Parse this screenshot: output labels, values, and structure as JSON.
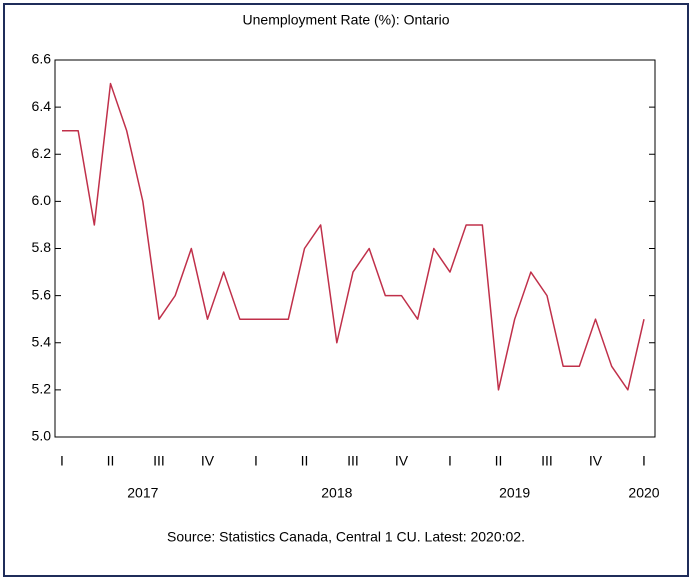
{
  "chart_data": {
    "type": "line",
    "title": "Unemployment Rate (%): Ontario",
    "source": "Source: Statistics Canada, Central 1 CU. Latest: 2020:02.",
    "categories": [
      "I",
      null,
      null,
      "II",
      null,
      null,
      "III",
      null,
      null,
      "IV",
      null,
      null,
      "I",
      null,
      null,
      "II",
      null,
      null,
      "III",
      null,
      null,
      "IV",
      null,
      null,
      "I",
      null,
      null,
      "II",
      null,
      null,
      "III",
      null,
      null,
      "IV",
      null,
      null,
      "I"
    ],
    "years": [
      null,
      null,
      null,
      null,
      null,
      "2017",
      null,
      null,
      null,
      null,
      null,
      null,
      null,
      null,
      null,
      null,
      null,
      "2018",
      null,
      null,
      null,
      null,
      null,
      null,
      null,
      null,
      null,
      null,
      "2019",
      null,
      null,
      null,
      null,
      null,
      null,
      null,
      "2020"
    ],
    "series": [
      {
        "name": "Ontario",
        "color": "#c0304a",
        "values": [
          6.3,
          6.3,
          5.9,
          6.5,
          6.3,
          6.0,
          5.5,
          5.6,
          5.8,
          5.5,
          5.7,
          5.5,
          5.5,
          5.5,
          5.5,
          5.8,
          5.9,
          5.4,
          5.7,
          5.8,
          5.6,
          5.6,
          5.5,
          5.8,
          5.7,
          5.9,
          5.9,
          5.2,
          5.5,
          5.7,
          5.6,
          5.3,
          5.3,
          5.5,
          5.3,
          5.2,
          5.5
        ]
      }
    ],
    "ylim": [
      5.0,
      6.6
    ],
    "yticks": [
      {
        "value": 5.0,
        "label": "5.0"
      },
      5.2,
      5.4,
      5.6,
      5.8,
      {
        "value": 6.0,
        "label": "6.0"
      },
      6.2,
      6.4,
      6.6
    ]
  }
}
